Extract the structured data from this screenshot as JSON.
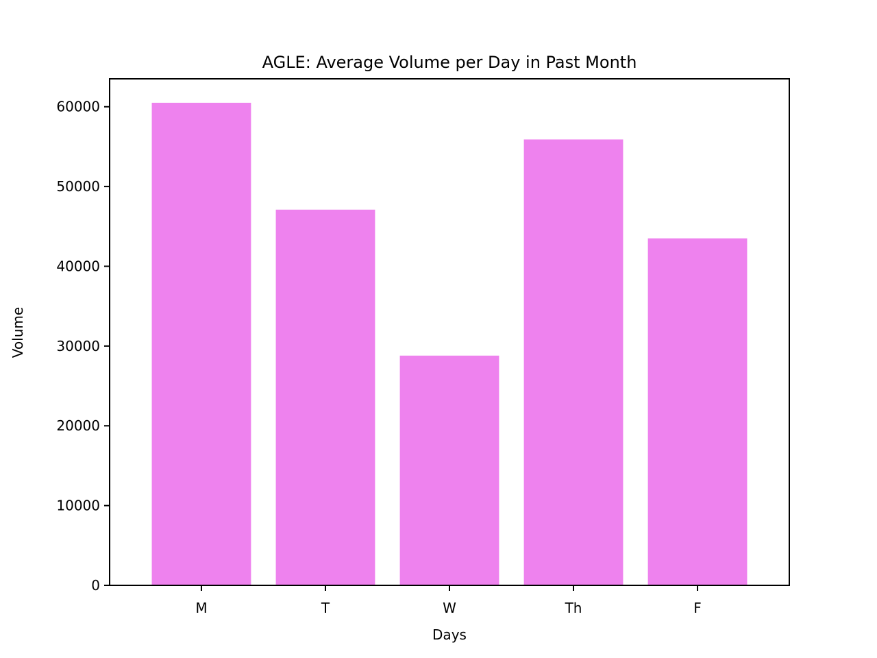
{
  "chart_data": {
    "type": "bar",
    "title": "AGLE: Average Volume per Day in Past Month",
    "xlabel": "Days",
    "ylabel": "Volume",
    "categories": [
      "M",
      "T",
      "W",
      "Th",
      "F"
    ],
    "values": [
      60500,
      47100,
      28800,
      55900,
      43500
    ],
    "ylim": [
      0,
      63500
    ],
    "yticks": [
      0,
      10000,
      20000,
      30000,
      40000,
      50000,
      60000
    ],
    "bar_color": "#EE82EE",
    "grid": false,
    "legend": "none"
  }
}
